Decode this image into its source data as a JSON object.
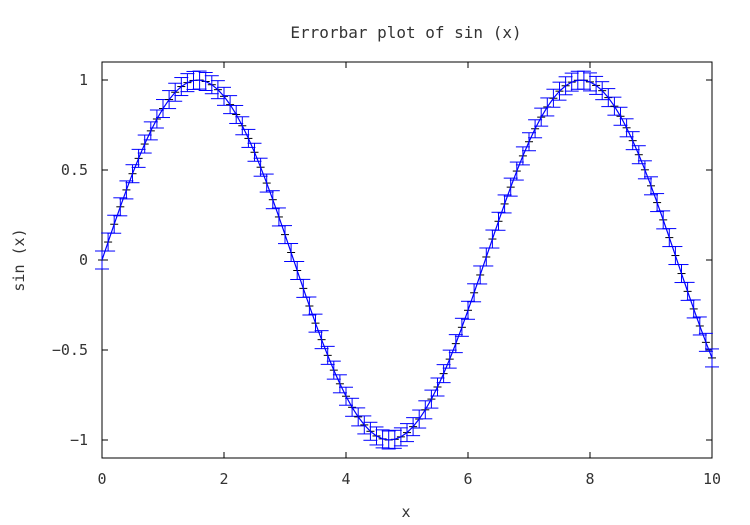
{
  "chart_data": {
    "type": "line",
    "title": "Errorbar plot of sin (x)",
    "xlabel": "x",
    "ylabel": "sin (x)",
    "xlim": [
      0,
      10
    ],
    "ylim": [
      -1.1,
      1.1
    ],
    "xticks": [
      0,
      2,
      4,
      6,
      8,
      10
    ],
    "xtick_labels": [
      "0",
      "2",
      "4",
      "6",
      "8",
      "10"
    ],
    "yticks": [
      1,
      0.5,
      0,
      -0.5,
      -1
    ],
    "ytick_labels": [
      "1",
      "0.5",
      "0",
      "−0.5",
      "−1"
    ],
    "grid": false,
    "legend": "none",
    "colors": {
      "series": "#0000ff",
      "marker": "#000000",
      "frame": "#000000",
      "text": "#333333"
    },
    "series": [
      {
        "x": [
          0,
          0.1,
          0.2,
          0.3,
          0.4,
          0.5,
          0.6,
          0.7,
          0.8,
          0.9,
          1.0,
          1.1,
          1.2,
          1.3,
          1.4,
          1.5,
          1.6,
          1.7,
          1.8,
          1.9,
          2.0,
          2.1,
          2.2,
          2.3,
          2.4,
          2.5,
          2.6,
          2.7,
          2.8,
          2.9,
          3.0,
          3.1,
          3.2,
          3.3,
          3.4,
          3.5,
          3.6,
          3.7,
          3.8,
          3.9,
          4.0,
          4.1,
          4.2,
          4.3,
          4.4,
          4.5,
          4.6,
          4.7,
          4.8,
          4.9,
          5.0,
          5.1,
          5.2,
          5.3,
          5.4,
          5.5,
          5.6,
          5.7,
          5.8,
          5.9,
          6.0,
          6.1,
          6.2,
          6.3,
          6.4,
          6.5,
          6.6,
          6.7,
          6.8,
          6.9,
          7.0,
          7.1,
          7.2,
          7.3,
          7.4,
          7.5,
          7.6,
          7.7,
          7.8,
          7.9,
          8.0,
          8.1,
          8.2,
          8.3,
          8.4,
          8.5,
          8.6,
          8.7,
          8.8,
          8.9,
          9.0,
          9.1,
          9.2,
          9.3,
          9.4,
          9.5,
          9.6,
          9.7,
          9.8,
          9.9,
          10.0
        ],
        "y": [
          0,
          0.0998,
          0.1987,
          0.2955,
          0.3894,
          0.4794,
          0.5646,
          0.6442,
          0.7174,
          0.7833,
          0.8415,
          0.8912,
          0.932,
          0.9636,
          0.9854,
          0.9975,
          0.9996,
          0.9917,
          0.9738,
          0.9463,
          0.9093,
          0.8632,
          0.8085,
          0.7457,
          0.6755,
          0.5985,
          0.5155,
          0.4274,
          0.335,
          0.2392,
          0.1411,
          0.0416,
          -0.0584,
          -0.1577,
          -0.2555,
          -0.3508,
          -0.4425,
          -0.5298,
          -0.6119,
          -0.6878,
          -0.7568,
          -0.8183,
          -0.8716,
          -0.9162,
          -0.9516,
          -0.9775,
          -0.9937,
          -0.9999,
          -0.9962,
          -0.9825,
          -0.9589,
          -0.9258,
          -0.8835,
          -0.8323,
          -0.7728,
          -0.7055,
          -0.6313,
          -0.5507,
          -0.4646,
          -0.3739,
          -0.2794,
          -0.1822,
          -0.0831,
          0.0168,
          0.1165,
          0.2151,
          0.3115,
          0.4048,
          0.4941,
          0.5784,
          0.657,
          0.729,
          0.7937,
          0.8504,
          0.8987,
          0.938,
          0.9679,
          0.9882,
          0.9985,
          0.9989,
          0.9894,
          0.9699,
          0.9407,
          0.9022,
          0.8546,
          0.7985,
          0.7344,
          0.663,
          0.5849,
          0.501,
          0.4121,
          0.319,
          0.2229,
          0.1245,
          0.0248,
          -0.0752,
          -0.1743,
          -0.2718,
          -0.3665,
          -0.4575,
          -0.544
        ],
        "error": 0.05
      }
    ]
  }
}
